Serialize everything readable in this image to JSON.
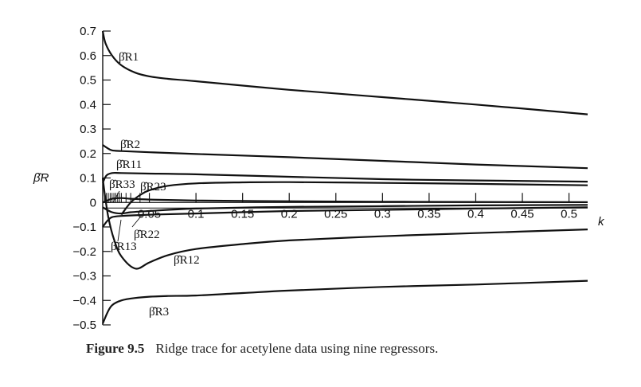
{
  "chart_data": {
    "type": "line",
    "ylabel": "β̂R",
    "xlabel": "k",
    "xlim": [
      0,
      0.52
    ],
    "ylim": [
      -0.5,
      0.7
    ],
    "x_ticks": [
      "0.05",
      "0.1",
      "0.15",
      "0.2",
      "0.25",
      "0.3",
      "0.35",
      "0.4",
      "0.45",
      "0.5"
    ],
    "y_ticks": [
      "0.7",
      "0.6",
      "0.5",
      "0.4",
      "0.3",
      "0.2",
      "0.1",
      "0",
      "−0.1",
      "−0.2",
      "−0.3",
      "−0.4",
      "−0.5"
    ],
    "series": [
      {
        "name": "β̂R1",
        "x": [
          0,
          0.003,
          0.01,
          0.02,
          0.035,
          0.05,
          0.07,
          0.1,
          0.2,
          0.3,
          0.4,
          0.52
        ],
        "y": [
          0.7,
          0.65,
          0.6,
          0.56,
          0.53,
          0.515,
          0.505,
          0.495,
          0.46,
          0.43,
          0.4,
          0.36
        ]
      },
      {
        "name": "β̂R2",
        "x": [
          0,
          0.005,
          0.01,
          0.02,
          0.05,
          0.1,
          0.2,
          0.3,
          0.4,
          0.52
        ],
        "y": [
          0.235,
          0.222,
          0.213,
          0.21,
          0.205,
          0.198,
          0.185,
          0.17,
          0.155,
          0.14
        ]
      },
      {
        "name": "β̂R11",
        "x": [
          0,
          0.004,
          0.01,
          0.02,
          0.05,
          0.1,
          0.2,
          0.3,
          0.4,
          0.52
        ],
        "y": [
          0.08,
          0.11,
          0.12,
          0.12,
          0.118,
          0.115,
          0.105,
          0.095,
          0.09,
          0.085
        ]
      },
      {
        "name": "β̂R33",
        "x": [
          0,
          0.01,
          0.02,
          0.03,
          0.05,
          0.1,
          0.2,
          0.3,
          0.4,
          0.52
        ],
        "y": [
          0.0,
          0.015,
          0.018,
          0.015,
          0.012,
          0.008,
          0.005,
          0.003,
          0.002,
          0.001
        ]
      },
      {
        "name": "β̂R23",
        "x": [
          0.02,
          0.03,
          0.04,
          0.05,
          0.07,
          0.1,
          0.15,
          0.2,
          0.3,
          0.4,
          0.52
        ],
        "y": [
          -0.05,
          0.0,
          0.03,
          0.05,
          0.068,
          0.078,
          0.082,
          0.083,
          0.08,
          0.076,
          0.07
        ]
      },
      {
        "name": "β̂R22",
        "x": [
          0,
          0.01,
          0.02,
          0.03,
          0.05,
          0.1,
          0.2,
          0.3,
          0.4,
          0.52
        ],
        "y": [
          -0.02,
          -0.04,
          -0.045,
          -0.04,
          -0.035,
          -0.025,
          -0.018,
          -0.015,
          -0.012,
          -0.01
        ]
      },
      {
        "name": "β̂R13",
        "x": [
          0,
          0.005,
          0.01,
          0.02,
          0.05,
          0.1,
          0.2,
          0.3,
          0.4,
          0.52
        ],
        "y": [
          -0.1,
          -0.075,
          -0.06,
          -0.055,
          -0.05,
          -0.045,
          -0.035,
          -0.03,
          -0.025,
          -0.02
        ]
      },
      {
        "name": "β̂R12",
        "x": [
          0,
          0.002,
          0.006,
          0.012,
          0.02,
          0.035,
          0.05,
          0.07,
          0.1,
          0.15,
          0.2,
          0.3,
          0.4,
          0.52
        ],
        "y": [
          0.1,
          0.04,
          -0.06,
          -0.15,
          -0.22,
          -0.27,
          -0.245,
          -0.215,
          -0.19,
          -0.17,
          -0.155,
          -0.138,
          -0.125,
          -0.11
        ]
      },
      {
        "name": "β̂R3",
        "x": [
          0,
          0.005,
          0.01,
          0.02,
          0.035,
          0.05,
          0.07,
          0.1,
          0.15,
          0.2,
          0.3,
          0.4,
          0.52
        ],
        "y": [
          -0.495,
          -0.45,
          -0.42,
          -0.4,
          -0.39,
          -0.385,
          -0.382,
          -0.38,
          -0.37,
          -0.36,
          -0.345,
          -0.335,
          -0.32
        ]
      }
    ]
  },
  "caption": {
    "number": "Figure 9.5",
    "text": "Ridge trace for acetylene data using nine regressors."
  }
}
